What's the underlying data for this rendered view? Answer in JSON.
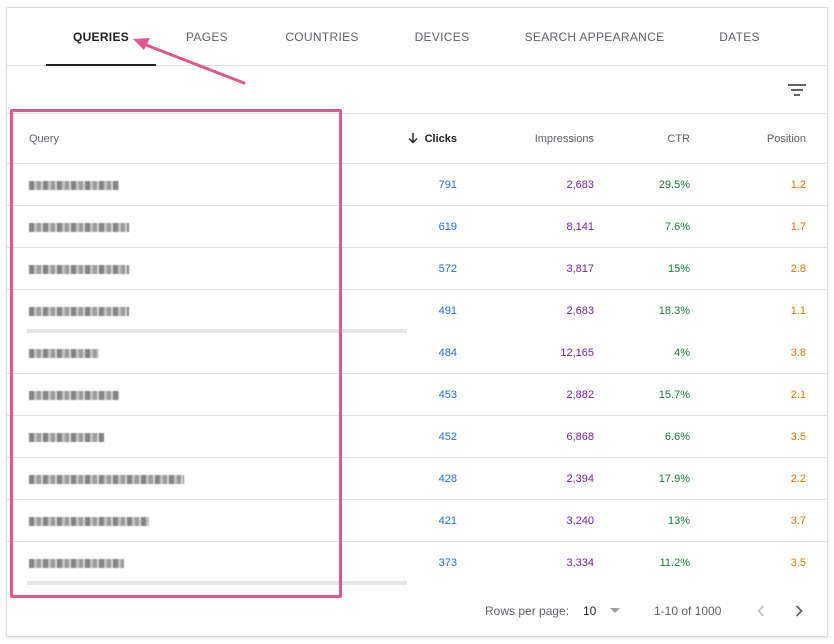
{
  "tabs": [
    {
      "label": "QUERIES"
    },
    {
      "label": "PAGES"
    },
    {
      "label": "COUNTRIES"
    },
    {
      "label": "DEVICES"
    },
    {
      "label": "SEARCH APPEARANCE"
    },
    {
      "label": "DATES"
    }
  ],
  "active_tab": "QUERIES",
  "table": {
    "columns": {
      "query": "Query",
      "clicks": "Clicks",
      "impressions": "Impressions",
      "ctr": "CTR",
      "position": "Position"
    },
    "sorted_by": "Clicks",
    "rows": [
      {
        "query": "",
        "clicks": "791",
        "impressions": "2,683",
        "ctr": "29.5%",
        "position": "1.2"
      },
      {
        "query": "",
        "clicks": "619",
        "impressions": "8,141",
        "ctr": "7.6%",
        "position": "1.7"
      },
      {
        "query": "",
        "clicks": "572",
        "impressions": "3,817",
        "ctr": "15%",
        "position": "2.8"
      },
      {
        "query": "",
        "clicks": "491",
        "impressions": "2,683",
        "ctr": "18.3%",
        "position": "1.1"
      },
      {
        "query": "",
        "clicks": "484",
        "impressions": "12,165",
        "ctr": "4%",
        "position": "3.8"
      },
      {
        "query": "",
        "clicks": "453",
        "impressions": "2,882",
        "ctr": "15.7%",
        "position": "2.1"
      },
      {
        "query": "",
        "clicks": "452",
        "impressions": "6,868",
        "ctr": "6.6%",
        "position": "3.5"
      },
      {
        "query": "",
        "clicks": "428",
        "impressions": "2,394",
        "ctr": "17.9%",
        "position": "2.2"
      },
      {
        "query": "",
        "clicks": "421",
        "impressions": "3,240",
        "ctr": "13%",
        "position": "3.7"
      },
      {
        "query": "",
        "clicks": "373",
        "impressions": "3,334",
        "ctr": "11.2%",
        "position": "3.5"
      }
    ]
  },
  "pagination": {
    "rows_per_page_label": "Rows per page:",
    "rows_per_page_value": "10",
    "range": "1-10 of 1000"
  },
  "icons": {
    "filter": "filter-icon",
    "sort": "arrow-down-icon",
    "prev": "chevron-left-icon",
    "next": "chevron-right-icon"
  },
  "colors": {
    "clicks": "#1a73e8",
    "impressions": "#7b1fa2",
    "ctr": "#188038",
    "position": "#e37400",
    "annotation": "#e0588f"
  }
}
